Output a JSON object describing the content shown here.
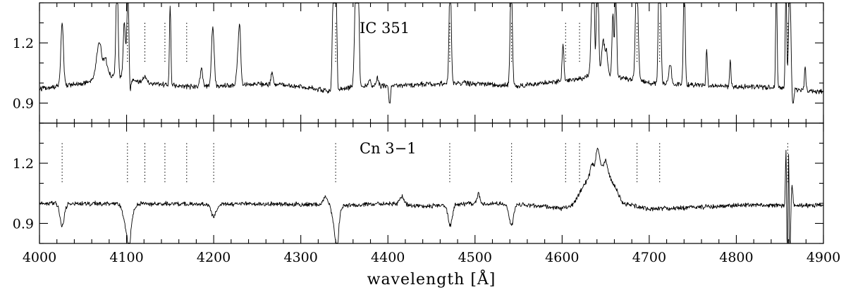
{
  "chart_data": [
    {
      "type": "line",
      "panel": "top",
      "label": "IC 351",
      "xlim": [
        4000,
        4900
      ],
      "ylim": [
        0.8,
        1.4
      ],
      "yticks": [
        0.9,
        1.2
      ],
      "line_markers": [
        4101,
        4121,
        4144,
        4169,
        4340,
        4471,
        4542,
        4604,
        4620,
        4686,
        4712,
        4859
      ],
      "continuum": [
        [
          4000,
          0.97
        ],
        [
          4050,
          1.0
        ],
        [
          4080,
          1.04
        ],
        [
          4120,
          1.0
        ],
        [
          4180,
          0.98
        ],
        [
          4250,
          0.995
        ],
        [
          4300,
          0.985
        ],
        [
          4330,
          0.96
        ],
        [
          4360,
          0.98
        ],
        [
          4420,
          0.99
        ],
        [
          4480,
          1.0
        ],
        [
          4550,
          0.985
        ],
        [
          4620,
          1.02
        ],
        [
          4640,
          1.05
        ],
        [
          4700,
          1.0
        ],
        [
          4760,
          0.99
        ],
        [
          4850,
          0.975
        ],
        [
          4900,
          0.955
        ]
      ],
      "features": [
        {
          "x": 4026,
          "depth": 0.32,
          "width": 1.5
        },
        {
          "x": 4068.6,
          "depth": 0.18,
          "width": 3.0
        },
        {
          "x": 4076,
          "depth": 0.08,
          "width": 2.0
        },
        {
          "x": 4089,
          "depth": 0.5,
          "width": 1.2
        },
        {
          "x": 4097.4,
          "depth": 0.28,
          "width": 1.3
        },
        {
          "x": 4101.7,
          "depth": 0.5,
          "width": 1.2
        },
        {
          "x": 4103.4,
          "depth": -0.14,
          "width": 1.0
        },
        {
          "x": 4121,
          "depth": 0.03,
          "width": 2.0
        },
        {
          "x": 4150,
          "depth": 0.4,
          "width": 0.8
        },
        {
          "x": 4186,
          "depth": 0.09,
          "width": 1.5
        },
        {
          "x": 4199,
          "depth": 0.3,
          "width": 1.5
        },
        {
          "x": 4228,
          "depth": 0.14,
          "width": 1.5
        },
        {
          "x": 4230,
          "depth": 0.24,
          "width": 1.2
        },
        {
          "x": 4267,
          "depth": 0.06,
          "width": 1.2
        },
        {
          "x": 4337.5,
          "depth": 0.55,
          "width": 1.2
        },
        {
          "x": 4340.5,
          "depth": 0.55,
          "width": 1.2
        },
        {
          "x": 4342,
          "depth": -0.11,
          "width": 1.0
        },
        {
          "x": 4363.2,
          "depth": 0.55,
          "width": 1.4
        },
        {
          "x": 4366,
          "depth": 0.55,
          "width": 1.0
        },
        {
          "x": 4379,
          "depth": 0.04,
          "width": 1.2
        },
        {
          "x": 4388,
          "depth": 0.04,
          "width": 1.2
        },
        {
          "x": 4402,
          "depth": -0.09,
          "width": 1.0
        },
        {
          "x": 4471.5,
          "depth": 0.55,
          "width": 1.2
        },
        {
          "x": 4541.6,
          "depth": 0.55,
          "width": 1.2
        },
        {
          "x": 4601,
          "depth": 0.19,
          "width": 1.0
        },
        {
          "x": 4634,
          "depth": 0.3,
          "width": 1.2
        },
        {
          "x": 4636,
          "depth": 0.55,
          "width": 1.0
        },
        {
          "x": 4640.6,
          "depth": 0.55,
          "width": 1.2
        },
        {
          "x": 4647,
          "depth": 0.17,
          "width": 1.5
        },
        {
          "x": 4650.8,
          "depth": 0.12,
          "width": 1.5
        },
        {
          "x": 4658.3,
          "depth": 0.32,
          "width": 1.0
        },
        {
          "x": 4661.6,
          "depth": 0.45,
          "width": 1.0
        },
        {
          "x": 4685.7,
          "depth": 0.55,
          "width": 1.5
        },
        {
          "x": 4711.3,
          "depth": 0.55,
          "width": 1.0
        },
        {
          "x": 4713,
          "depth": 0.3,
          "width": 1.0
        },
        {
          "x": 4724,
          "depth": 0.1,
          "width": 1.5
        },
        {
          "x": 4740.2,
          "depth": 0.55,
          "width": 1.0
        },
        {
          "x": 4766,
          "depth": 0.18,
          "width": 0.8
        },
        {
          "x": 4793,
          "depth": 0.12,
          "width": 0.8
        },
        {
          "x": 4846,
          "depth": 0.55,
          "width": 0.8
        },
        {
          "x": 4857,
          "depth": 0.55,
          "width": 0.8
        },
        {
          "x": 4861.3,
          "depth": 0.55,
          "width": 1.2
        },
        {
          "x": 4865,
          "depth": -0.08,
          "width": 1.0
        },
        {
          "x": 4879,
          "depth": 0.12,
          "width": 0.8
        }
      ],
      "noise": 0.01
    },
    {
      "type": "line",
      "panel": "bottom",
      "label": "Cn 3−1",
      "xlim": [
        4000,
        4900
      ],
      "ylim": [
        0.8,
        1.4
      ],
      "yticks": [
        0.9,
        1.2
      ],
      "line_markers": [
        4026,
        4101,
        4121,
        4144,
        4169,
        4200,
        4340,
        4471,
        4542,
        4604,
        4620,
        4686,
        4712,
        4859
      ],
      "continuum": [
        [
          4000,
          1.0
        ],
        [
          4300,
          0.995
        ],
        [
          4360,
          0.99
        ],
        [
          4400,
          1.0
        ],
        [
          4440,
          0.985
        ],
        [
          4500,
          1.0
        ],
        [
          4550,
          0.995
        ],
        [
          4600,
          0.975
        ],
        [
          4612,
          0.99
        ],
        [
          4640,
          1.2
        ],
        [
          4655,
          1.13
        ],
        [
          4670,
          1.0
        ],
        [
          4700,
          0.97
        ],
        [
          4800,
          0.99
        ],
        [
          4900,
          0.99
        ]
      ],
      "features": [
        {
          "x": 4026,
          "depth": -0.11,
          "width": 2.5
        },
        {
          "x": 4101.7,
          "depth": -0.16,
          "width": 4.0
        },
        {
          "x": 4103,
          "depth": -0.09,
          "width": 1.3
        },
        {
          "x": 4200,
          "depth": -0.06,
          "width": 3.0
        },
        {
          "x": 4328,
          "depth": 0.04,
          "width": 2.5
        },
        {
          "x": 4340.5,
          "depth": -0.16,
          "width": 3.0
        },
        {
          "x": 4342,
          "depth": -0.07,
          "width": 1.3
        },
        {
          "x": 4416,
          "depth": 0.04,
          "width": 2.5
        },
        {
          "x": 4471.5,
          "depth": -0.1,
          "width": 2.5
        },
        {
          "x": 4504,
          "depth": 0.05,
          "width": 1.5
        },
        {
          "x": 4541.6,
          "depth": -0.11,
          "width": 2.5
        },
        {
          "x": 4634,
          "depth": 0.04,
          "width": 1.5
        },
        {
          "x": 4641,
          "depth": 0.08,
          "width": 2.0
        },
        {
          "x": 4650,
          "depth": 0.06,
          "width": 2.0
        },
        {
          "x": 4857,
          "depth": 0.3,
          "width": 0.6
        },
        {
          "x": 4858.5,
          "depth": -0.35,
          "width": 0.6
        },
        {
          "x": 4860,
          "depth": 0.28,
          "width": 0.6
        },
        {
          "x": 4861.5,
          "depth": -0.35,
          "width": 0.6
        },
        {
          "x": 4864,
          "depth": 0.1,
          "width": 0.8
        }
      ],
      "noise": 0.009
    }
  ],
  "x_axis": {
    "xlabel": "wavelength [Å]",
    "ticks": [
      4000,
      4100,
      4200,
      4300,
      4400,
      4500,
      4600,
      4700,
      4800,
      4900
    ]
  }
}
